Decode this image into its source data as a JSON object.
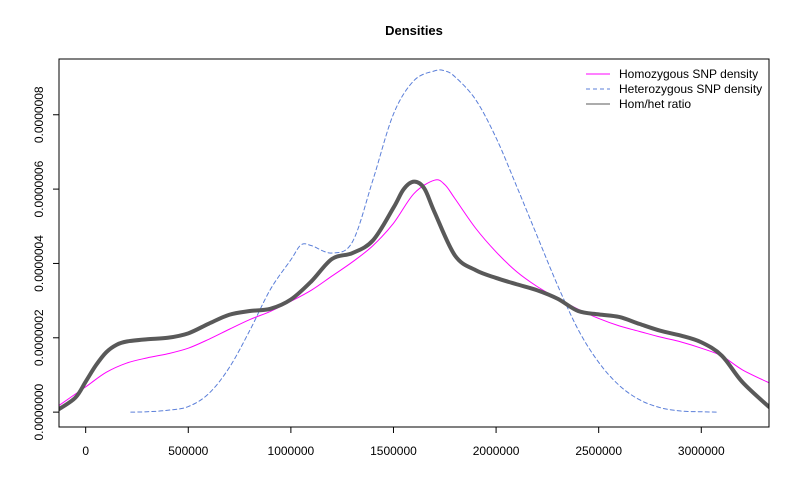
{
  "chart_data": {
    "type": "line",
    "title": "Densities",
    "xlabel": "",
    "ylabel": "",
    "xlim": [
      -130000,
      3330000
    ],
    "ylim": [
      -4e-08,
      9.5e-07
    ],
    "x_ticks": [
      0,
      500000,
      1000000,
      1500000,
      2000000,
      2500000,
      3000000
    ],
    "x_tick_labels": [
      "0",
      "500000",
      "1000000",
      "1500000",
      "2000000",
      "2500000",
      "3000000"
    ],
    "y_ticks": [
      0,
      2e-07,
      4e-07,
      6e-07,
      8e-07
    ],
    "y_tick_labels": [
      "0.0000000",
      "0.0000002",
      "0.0000004",
      "0.0000006",
      "0.0000008"
    ],
    "legend_position": "top-right",
    "series": [
      {
        "name": "Homozygous SNP density",
        "color": "#ff00ff",
        "line_style": "solid",
        "line_weight": "thin",
        "x": [
          -130000,
          0,
          100000,
          200000,
          300000,
          400000,
          500000,
          600000,
          700000,
          800000,
          900000,
          1000000,
          1100000,
          1200000,
          1300000,
          1400000,
          1500000,
          1600000,
          1700000,
          1750000,
          1800000,
          1900000,
          2000000,
          2100000,
          2200000,
          2300000,
          2400000,
          2500000,
          2600000,
          2700000,
          2800000,
          2900000,
          3000000,
          3100000,
          3200000,
          3330000
        ],
        "y": [
          1.8e-08,
          6.8e-08,
          1.07e-07,
          1.32e-07,
          1.46e-07,
          1.57e-07,
          1.72e-07,
          1.96e-07,
          2.23e-07,
          2.49e-07,
          2.71e-07,
          2.98e-07,
          3.28e-07,
          3.66e-07,
          4.04e-07,
          4.48e-07,
          5.08e-07,
          5.88e-07,
          6.24e-07,
          6.12e-07,
          5.74e-07,
          4.95e-07,
          4.31e-07,
          3.78e-07,
          3.38e-07,
          3.06e-07,
          2.77e-07,
          2.52e-07,
          2.32e-07,
          2.17e-07,
          2.02e-07,
          1.89e-07,
          1.72e-07,
          1.51e-07,
          1.14e-07,
          7.9e-08
        ]
      },
      {
        "name": "Heterozygous SNP density",
        "color": "#5b7fd9",
        "line_style": "dashed",
        "line_weight": "thin",
        "x": [
          220000,
          300000,
          400000,
          500000,
          600000,
          700000,
          800000,
          900000,
          1000000,
          1050000,
          1100000,
          1200000,
          1300000,
          1400000,
          1500000,
          1600000,
          1700000,
          1750000,
          1800000,
          1900000,
          2000000,
          2100000,
          2200000,
          2300000,
          2400000,
          2500000,
          2600000,
          2700000,
          2800000,
          2900000,
          3000000,
          3080000
        ],
        "y": [
          0.0,
          1e-09,
          5e-09,
          1.5e-08,
          5e-08,
          1.2e-07,
          2.2e-07,
          3.3e-07,
          4.1e-07,
          4.5e-07,
          4.48e-07,
          4.28e-07,
          4.58e-07,
          6.25e-07,
          8.02e-07,
          8.92e-07,
          9.18e-07,
          9.18e-07,
          9.02e-07,
          8.41e-07,
          7.38e-07,
          6.08e-07,
          4.74e-07,
          3.41e-07,
          2.22e-07,
          1.34e-07,
          7.2e-08,
          3.3e-08,
          1.2e-08,
          3e-09,
          1e-09,
          0.0
        ]
      },
      {
        "name": "Hom/het ratio",
        "color": "#595959",
        "line_style": "solid",
        "line_weight": "thick",
        "x": [
          -130000,
          -50000,
          0,
          50000,
          100000,
          150000,
          200000,
          300000,
          400000,
          500000,
          600000,
          700000,
          800000,
          900000,
          1000000,
          1100000,
          1200000,
          1300000,
          1400000,
          1500000,
          1550000,
          1600000,
          1650000,
          1700000,
          1800000,
          1900000,
          2000000,
          2100000,
          2200000,
          2300000,
          2400000,
          2500000,
          2600000,
          2700000,
          2800000,
          2900000,
          3000000,
          3100000,
          3200000,
          3330000
        ],
        "y": [
          8e-09,
          3.9e-08,
          8.2e-08,
          1.26e-07,
          1.61e-07,
          1.81e-07,
          1.9e-07,
          1.96e-07,
          2e-07,
          2.12e-07,
          2.38e-07,
          2.62e-07,
          2.72e-07,
          2.78e-07,
          3.03e-07,
          3.52e-07,
          4.12e-07,
          4.28e-07,
          4.62e-07,
          5.5e-07,
          6e-07,
          6.2e-07,
          6.02e-07,
          5.38e-07,
          4.21e-07,
          3.82e-07,
          3.61e-07,
          3.44e-07,
          3.28e-07,
          3.05e-07,
          2.72e-07,
          2.63e-07,
          2.56e-07,
          2.37e-07,
          2.19e-07,
          2.06e-07,
          1.88e-07,
          1.52e-07,
          8.1e-08,
          1.4e-08
        ]
      }
    ]
  }
}
